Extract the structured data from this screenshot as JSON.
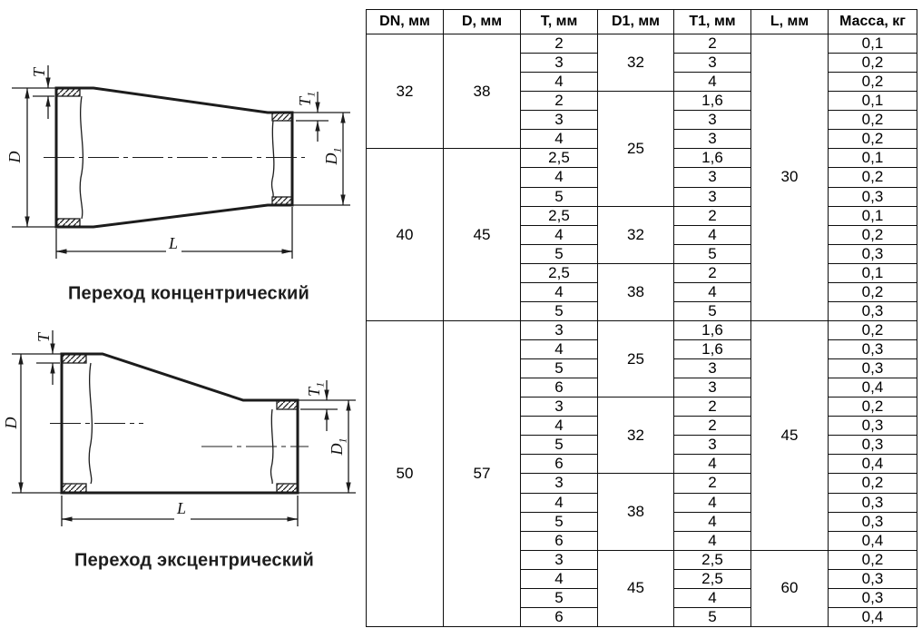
{
  "figures": [
    {
      "caption": "Переход концентрический",
      "labels": {
        "t": {
          "base": "T",
          "sub": ""
        },
        "d": {
          "base": "D",
          "sub": ""
        },
        "t1": {
          "base": "T",
          "sub": "1"
        },
        "d1": {
          "base": "D",
          "sub": "1"
        },
        "l": {
          "base": "L",
          "sub": ""
        }
      }
    },
    {
      "caption": "Переход эксцентрический",
      "labels": {
        "t": {
          "base": "T",
          "sub": ""
        },
        "d": {
          "base": "D",
          "sub": ""
        },
        "t1": {
          "base": "T",
          "sub": "1"
        },
        "d1": {
          "base": "D",
          "sub": "1"
        },
        "l": {
          "base": "L",
          "sub": ""
        }
      }
    }
  ],
  "table": {
    "headers": [
      "DN, мм",
      "D, мм",
      "T, мм",
      "D1, мм",
      "T1, мм",
      "L, мм",
      "Масса, кг"
    ],
    "columns": {
      "dn": [
        {
          "v": "32",
          "rows": 6
        },
        {
          "v": "40",
          "rows": 9
        },
        {
          "v": "50",
          "rows": 16
        }
      ],
      "d": [
        {
          "v": "38",
          "rows": 6
        },
        {
          "v": "45",
          "rows": 9
        },
        {
          "v": "57",
          "rows": 16
        }
      ],
      "t": [
        "2",
        "3",
        "4",
        "2",
        "3",
        "4",
        "2,5",
        "4",
        "5",
        "2,5",
        "4",
        "5",
        "2,5",
        "4",
        "5",
        "3",
        "4",
        "5",
        "6",
        "3",
        "4",
        "5",
        "6",
        "3",
        "4",
        "5",
        "6",
        "3",
        "4",
        "5",
        "6"
      ],
      "d1": [
        {
          "v": "32",
          "rows": 3
        },
        {
          "v": "25",
          "rows": 6
        },
        {
          "v": "32",
          "rows": 3
        },
        {
          "v": "38",
          "rows": 3
        },
        {
          "v": "25",
          "rows": 4
        },
        {
          "v": "32",
          "rows": 4
        },
        {
          "v": "38",
          "rows": 4
        },
        {
          "v": "45",
          "rows": 4
        }
      ],
      "t1": [
        "2",
        "3",
        "4",
        "1,6",
        "3",
        "3",
        "1,6",
        "3",
        "3",
        "2",
        "4",
        "5",
        "2",
        "4",
        "5",
        "1,6",
        "1,6",
        "3",
        "3",
        "2",
        "2",
        "3",
        "4",
        "2",
        "4",
        "4",
        "4",
        "2,5",
        "2,5",
        "4",
        "5"
      ],
      "l": [
        {
          "v": "30",
          "rows": 15
        },
        {
          "v": "45",
          "rows": 12
        },
        {
          "v": "60",
          "rows": 4
        }
      ],
      "mass": [
        "0,1",
        "0,2",
        "0,2",
        "0,1",
        "0,2",
        "0,2",
        "0,1",
        "0,2",
        "0,3",
        "0,1",
        "0,2",
        "0,3",
        "0,1",
        "0,2",
        "0,3",
        "0,2",
        "0,3",
        "0,3",
        "0,4",
        "0,2",
        "0,3",
        "0,3",
        "0,4",
        "0,2",
        "0,3",
        "0,3",
        "0,4",
        "0,2",
        "0,3",
        "0,3",
        "0,4"
      ]
    }
  },
  "colors": {
    "line": "#1c1c1c",
    "text": "#000000",
    "background": "#ffffff"
  }
}
